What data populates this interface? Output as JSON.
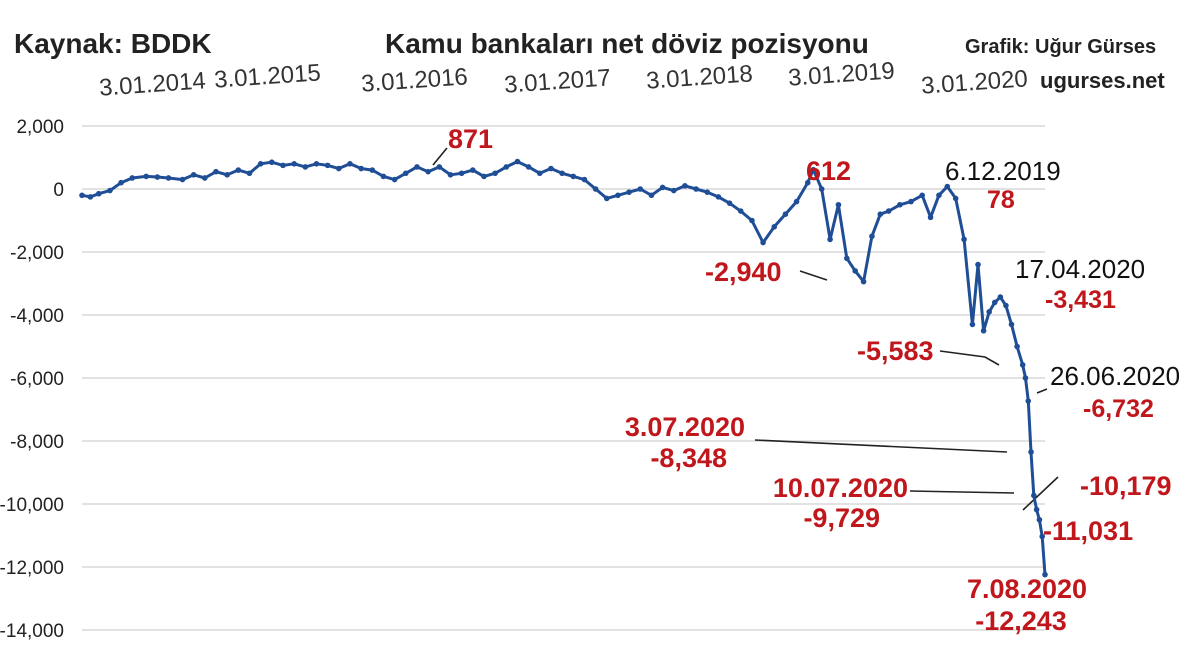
{
  "header": {
    "source": "Kaynak: BDDK",
    "title": "Kamu bankaları net döviz pozisyonu",
    "credit": "Grafik: Uğur Gürses",
    "site": "ugurses.net"
  },
  "colors": {
    "line": "#1f4e96",
    "annotation_red": "#c0171c",
    "annotation_dark": "#111111",
    "grid": "#d9d9d9"
  },
  "chart_data": {
    "type": "line",
    "title": "Kamu bankaları net döviz pozisyonu",
    "ylim": [
      -14000,
      2000
    ],
    "yticks": [
      2000,
      0,
      -2000,
      -4000,
      -6000,
      -8000,
      -10000,
      -12000,
      -14000
    ],
    "ytick_labels": [
      "2,000",
      "0",
      "-2,000",
      "-4,000",
      "-6,000",
      "-8,000",
      "-10,000",
      "-12,000",
      "-14,000"
    ],
    "xticks": [
      "3.01.2014",
      "3.01.2015",
      "3.01.2016",
      "3.01.2017",
      "3.01.2018",
      "3.01.2019",
      "3.01.2020"
    ],
    "grid": true,
    "legend": "none",
    "series": [
      {
        "points": [
          [
            "2013-12-27",
            -200
          ],
          [
            "2014-01-17",
            -250
          ],
          [
            "2014-02-07",
            -150
          ],
          [
            "2014-03-07",
            -50
          ],
          [
            "2014-04-04",
            200
          ],
          [
            "2014-05-02",
            350
          ],
          [
            "2014-06-06",
            400
          ],
          [
            "2014-07-04",
            380
          ],
          [
            "2014-08-01",
            350
          ],
          [
            "2014-09-05",
            300
          ],
          [
            "2014-10-03",
            450
          ],
          [
            "2014-10-31",
            350
          ],
          [
            "2014-11-28",
            550
          ],
          [
            "2014-12-26",
            450
          ],
          [
            "2015-01-23",
            600
          ],
          [
            "2015-02-20",
            500
          ],
          [
            "2015-03-20",
            800
          ],
          [
            "2015-04-17",
            850
          ],
          [
            "2015-05-15",
            750
          ],
          [
            "2015-06-12",
            800
          ],
          [
            "2015-07-10",
            700
          ],
          [
            "2015-08-07",
            800
          ],
          [
            "2015-09-04",
            750
          ],
          [
            "2015-10-02",
            650
          ],
          [
            "2015-10-30",
            800
          ],
          [
            "2015-11-27",
            650
          ],
          [
            "2015-12-25",
            600
          ],
          [
            "2016-01-22",
            400
          ],
          [
            "2016-02-19",
            300
          ],
          [
            "2016-03-18",
            500
          ],
          [
            "2016-04-15",
            700
          ],
          [
            "2016-05-13",
            550
          ],
          [
            "2016-06-10",
            700
          ],
          [
            "2016-07-08",
            450
          ],
          [
            "2016-08-05",
            500
          ],
          [
            "2016-09-02",
            600
          ],
          [
            "2016-09-30",
            400
          ],
          [
            "2016-10-28",
            500
          ],
          [
            "2016-11-25",
            700
          ],
          [
            "2016-12-23",
            871
          ],
          [
            "2017-01-20",
            700
          ],
          [
            "2017-02-17",
            500
          ],
          [
            "2017-03-17",
            650
          ],
          [
            "2017-04-14",
            500
          ],
          [
            "2017-05-12",
            400
          ],
          [
            "2017-06-09",
            300
          ],
          [
            "2017-07-07",
            0
          ],
          [
            "2017-08-04",
            -300
          ],
          [
            "2017-09-01",
            -200
          ],
          [
            "2017-09-29",
            -100
          ],
          [
            "2017-10-27",
            0
          ],
          [
            "2017-11-24",
            -200
          ],
          [
            "2017-12-22",
            50
          ],
          [
            "2018-01-19",
            -50
          ],
          [
            "2018-02-16",
            100
          ],
          [
            "2018-03-16",
            0
          ],
          [
            "2018-04-13",
            -100
          ],
          [
            "2018-05-11",
            -250
          ],
          [
            "2018-06-08",
            -450
          ],
          [
            "2018-07-06",
            -700
          ],
          [
            "2018-08-03",
            -1000
          ],
          [
            "2018-08-31",
            -1700
          ],
          [
            "2018-09-28",
            -1200
          ],
          [
            "2018-10-26",
            -800
          ],
          [
            "2018-11-23",
            -400
          ],
          [
            "2018-12-21",
            200
          ],
          [
            "2019-01-04",
            612
          ],
          [
            "2019-01-25",
            0
          ],
          [
            "2019-02-15",
            -1600
          ],
          [
            "2019-03-08",
            -500
          ],
          [
            "2019-03-29",
            -2200
          ],
          [
            "2019-04-19",
            -2600
          ],
          [
            "2019-05-10",
            -2940
          ],
          [
            "2019-05-31",
            -1500
          ],
          [
            "2019-06-21",
            -800
          ],
          [
            "2019-07-12",
            -700
          ],
          [
            "2019-08-09",
            -500
          ],
          [
            "2019-09-06",
            -400
          ],
          [
            "2019-10-04",
            -200
          ],
          [
            "2019-10-25",
            -900
          ],
          [
            "2019-11-15",
            -200
          ],
          [
            "2019-12-06",
            78
          ],
          [
            "2019-12-27",
            -300
          ],
          [
            "2020-01-17",
            -1600
          ],
          [
            "2020-02-07",
            -4300
          ],
          [
            "2020-02-21",
            -2400
          ],
          [
            "2020-03-06",
            -4500
          ],
          [
            "2020-03-20",
            -3900
          ],
          [
            "2020-04-03",
            -3600
          ],
          [
            "2020-04-17",
            -3431
          ],
          [
            "2020-05-01",
            -3700
          ],
          [
            "2020-05-15",
            -4300
          ],
          [
            "2020-05-29",
            -5000
          ],
          [
            "2020-06-12",
            -5583
          ],
          [
            "2020-06-19",
            -6000
          ],
          [
            "2020-06-26",
            -6732
          ],
          [
            "2020-07-03",
            -8348
          ],
          [
            "2020-07-10",
            -9729
          ],
          [
            "2020-07-17",
            -10179
          ],
          [
            "2020-07-24",
            -10500
          ],
          [
            "2020-07-31",
            -11031
          ],
          [
            "2020-08-07",
            -12243
          ]
        ]
      }
    ],
    "annotations": [
      {
        "label": "871",
        "color": "red"
      },
      {
        "label": "612",
        "color": "red"
      },
      {
        "date": "6.12.2019",
        "value": "78"
      },
      {
        "label": "-2,940",
        "color": "red"
      },
      {
        "date": "17.04.2020",
        "value": "-3,431"
      },
      {
        "label": "-5,583",
        "color": "red"
      },
      {
        "date": "26.06.2020",
        "value": "-6,732"
      },
      {
        "date": "3.07.2020",
        "value": "-8,348",
        "color": "red"
      },
      {
        "date": "10.07.2020",
        "value": "-9,729",
        "color": "red"
      },
      {
        "label": "-10,179",
        "color": "red"
      },
      {
        "label": "-11,031",
        "color": "red"
      },
      {
        "date": "7.08.2020",
        "value": "-12,243",
        "color": "red"
      }
    ]
  }
}
